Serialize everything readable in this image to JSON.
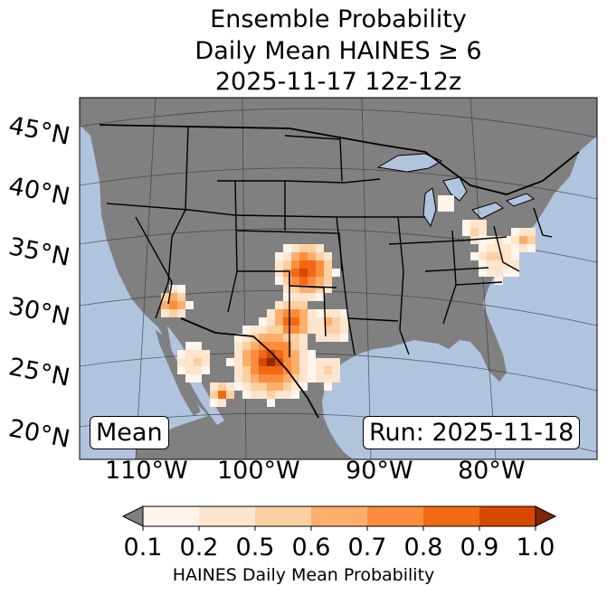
{
  "title": {
    "line1": "Ensemble Probability",
    "line2": "Daily Mean HAINES ≥ 6",
    "line3": "2025-11-17 12z-12z"
  },
  "map": {
    "ocean_color": "#b0c4de",
    "land_color": "#808080",
    "lakes_color": "#b0c4de",
    "border_color": "#000000",
    "lat_labels": [
      "45°N",
      "40°N",
      "35°N",
      "30°N",
      "25°N",
      "20°N"
    ],
    "lon_labels": [
      "110°W",
      "100°W",
      "90°W",
      "80°W"
    ]
  },
  "annotations": {
    "left_box": "Mean",
    "right_box": "Run: 2025-11-18"
  },
  "colorbar": {
    "ticks": [
      "0.1",
      "0.2",
      "0.5",
      "0.6",
      "0.7",
      "0.8",
      "0.9",
      "1.0"
    ],
    "colors": [
      "#fff5eb",
      "#fee6ce",
      "#fdd0a2",
      "#fdae6b",
      "#fd8d3c",
      "#f16913",
      "#d94801",
      "#8c2d04"
    ],
    "under_color": "#808080",
    "label": "HAINES Daily Mean Probability"
  }
}
